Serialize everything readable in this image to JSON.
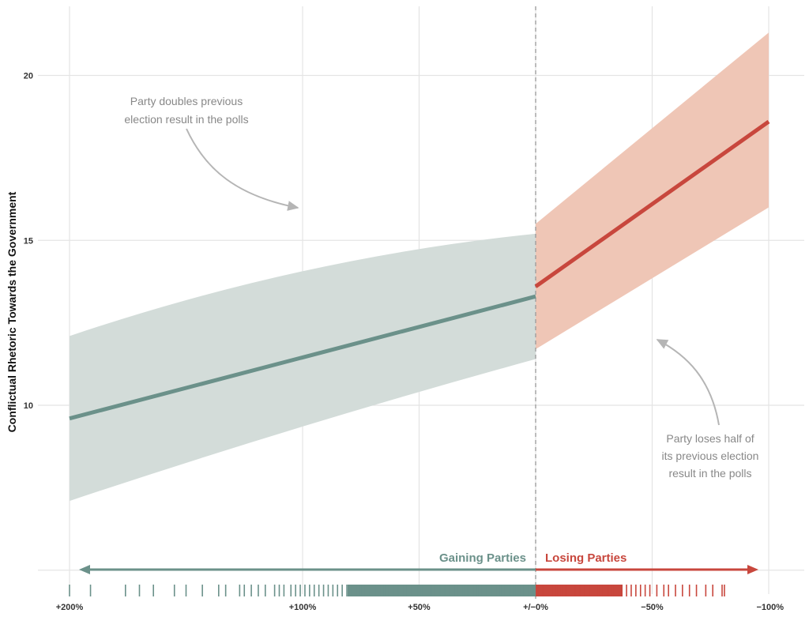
{
  "chart_data": {
    "type": "line",
    "title": "",
    "xlabel": "",
    "ylabel": "Conflictual Rhetoric Towards the Government",
    "x_tick_labels": [
      "+200%",
      "+100%",
      "+50%",
      "+/−0%",
      "−50%",
      "−100%"
    ],
    "x_tick_values": [
      300,
      200,
      150,
      100,
      50,
      0
    ],
    "y_ticks": [
      10,
      15,
      20
    ],
    "ylim": [
      5,
      21.5
    ],
    "grid": true,
    "series": [
      {
        "name": "Gaining Parties",
        "color": "#6b918a",
        "band_color": "#d3dcd9",
        "x": [
          300,
          100
        ],
        "y": [
          9.6,
          13.3
        ],
        "ci_lower": [
          7.1,
          11.4
        ],
        "ci_upper": [
          12.1,
          15.2
        ]
      },
      {
        "name": "Losing Parties",
        "color": "#c8473d",
        "band_color": "#efc6b6",
        "x": [
          100,
          0
        ],
        "y": [
          13.6,
          18.6
        ],
        "ci_lower": [
          11.7,
          16.0
        ],
        "ci_upper": [
          15.5,
          21.3
        ]
      }
    ],
    "cutoff_x": 100,
    "annotations": [
      {
        "lines": [
          "Party doubles previous",
          "election result in the polls"
        ]
      },
      {
        "lines": [
          "Party loses half of",
          "its previous election",
          "result in the polls"
        ]
      }
    ],
    "direction_labels": {
      "gaining": "Gaining Parties",
      "losing": "Losing Parties"
    },
    "rug": {
      "gaining": [
        300,
        291,
        276,
        270,
        264,
        255,
        250,
        243,
        236,
        233,
        227,
        225,
        222,
        219,
        216,
        212,
        210,
        208,
        205,
        203,
        201,
        199,
        197,
        195,
        193,
        191,
        189,
        187,
        185,
        183,
        181,
        179,
        177,
        175,
        173,
        171,
        169,
        167,
        165,
        163,
        161,
        159,
        157,
        155,
        153,
        151,
        149,
        147,
        145,
        143,
        141,
        139,
        137,
        135,
        133,
        131,
        129,
        127,
        125,
        123,
        121,
        119,
        117,
        115,
        113,
        111,
        109,
        107,
        105,
        103,
        101
      ],
      "losing": [
        99,
        97,
        95,
        93,
        91,
        89,
        87,
        85,
        83,
        81,
        79,
        77,
        75,
        73,
        71,
        69,
        67,
        65,
        63,
        61,
        59,
        57,
        55,
        53,
        51,
        48,
        45,
        43,
        40,
        37,
        34,
        31,
        27,
        24,
        20,
        19
      ]
    }
  }
}
